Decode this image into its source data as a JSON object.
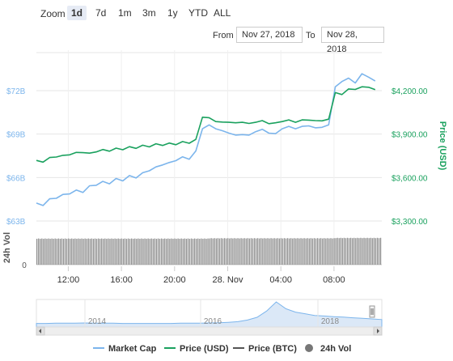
{
  "toolbar": {
    "zoom_label": "Zoom",
    "zoom_options": [
      "1d",
      "7d",
      "1m",
      "3m",
      "1y",
      "YTD",
      "ALL"
    ],
    "active_zoom": "1d",
    "from_label": "From",
    "from_value": "Nov 27, 2018",
    "to_label": "To",
    "to_value": "Nov 28, 2018"
  },
  "colors": {
    "market_cap": "#7cb5ec",
    "price_usd": "#1aa15e",
    "price_btc": "#555555",
    "vol": "#777777",
    "vol_fill": "#8a8a8a"
  },
  "chart_data": {
    "type": "line",
    "x_ticks": [
      "12:00",
      "16:00",
      "20:00",
      "28. Nov",
      "04:00",
      "08:00"
    ],
    "y_left": {
      "ticks": [
        "$63B",
        "$66B",
        "$69B",
        "$72B"
      ],
      "range": [
        63,
        72
      ]
    },
    "y_right": {
      "label": "Price (USD)",
      "ticks": [
        "$3,300.00",
        "$3,600.00",
        "$3,900.00",
        "$4,200.00"
      ],
      "range": [
        3300,
        4200
      ]
    },
    "vol_axis": {
      "label": "24h Vol",
      "ticks": [
        "0"
      ]
    },
    "x_range": [
      0,
      26
    ],
    "series": [
      {
        "name": "Market Cap",
        "unit": "billion USD",
        "x": [
          0,
          0.5,
          1,
          1.5,
          2,
          2.5,
          3,
          3.5,
          4,
          4.5,
          5,
          5.5,
          6,
          6.5,
          7,
          7.5,
          8,
          8.5,
          9,
          9.5,
          10,
          10.5,
          11,
          11.5,
          12,
          12.5,
          13,
          13.5,
          14,
          14.5,
          15,
          15.5,
          16,
          16.5,
          17,
          17.5,
          18,
          18.5,
          19,
          19.5,
          20,
          20.5,
          21,
          21.5,
          22,
          22.5,
          23,
          23.5,
          24,
          24.5,
          25,
          25.5
        ],
        "values": [
          64.2,
          64.1,
          64.5,
          64.6,
          64.8,
          64.9,
          65.1,
          65.0,
          65.4,
          65.5,
          65.7,
          65.6,
          65.9,
          65.8,
          66.1,
          66.0,
          66.3,
          66.5,
          66.7,
          66.9,
          67.0,
          67.2,
          67.4,
          67.3,
          67.8,
          69.4,
          69.6,
          69.4,
          69.2,
          69.1,
          68.9,
          69.0,
          68.9,
          69.2,
          69.3,
          69.1,
          69.0,
          69.4,
          69.5,
          69.4,
          69.5,
          69.6,
          69.4,
          69.5,
          69.6,
          72.3,
          72.6,
          72.9,
          72.5,
          73.2,
          72.9,
          72.7
        ]
      },
      {
        "name": "Price (USD)",
        "unit": "USD",
        "x": [
          0,
          0.5,
          1,
          1.5,
          2,
          2.5,
          3,
          3.5,
          4,
          4.5,
          5,
          5.5,
          6,
          6.5,
          7,
          7.5,
          8,
          8.5,
          9,
          9.5,
          10,
          10.5,
          11,
          11.5,
          12,
          12.5,
          13,
          13.5,
          14,
          14.5,
          15,
          15.5,
          16,
          16.5,
          17,
          17.5,
          18,
          18.5,
          19,
          19.5,
          20,
          20.5,
          21,
          21.5,
          22,
          22.5,
          23,
          23.5,
          24,
          24.5,
          25,
          25.5
        ],
        "values": [
          3715,
          3710,
          3735,
          3745,
          3750,
          3760,
          3770,
          3775,
          3765,
          3780,
          3790,
          3785,
          3800,
          3795,
          3810,
          3805,
          3820,
          3815,
          3830,
          3825,
          3835,
          3830,
          3845,
          3840,
          3860,
          4020,
          4010,
          3990,
          3980,
          3985,
          3975,
          3985,
          3970,
          3985,
          3990,
          3975,
          3975,
          3990,
          3995,
          3985,
          3995,
          4000,
          3990,
          3995,
          4000,
          4190,
          4170,
          4215,
          4205,
          4230,
          4220,
          4210
        ]
      },
      {
        "name": "Price (BTC)",
        "unit": "BTC",
        "x": [],
        "values": []
      }
    ],
    "volume": {
      "name": "24h Vol",
      "note": "nearly flat, high level",
      "levels": [
        0.78,
        0.78,
        0.78,
        0.78,
        0.78,
        0.78,
        0.78,
        0.78,
        0.78,
        0.78,
        0.78,
        0.78,
        0.78,
        0.78,
        0.78,
        0.78,
        0.78,
        0.78,
        0.78,
        0.78,
        0.78,
        0.78,
        0.78,
        0.78,
        0.78,
        0.78,
        0.79,
        0.79,
        0.79,
        0.79,
        0.79,
        0.79,
        0.79,
        0.79,
        0.79,
        0.79,
        0.79,
        0.79,
        0.79,
        0.79,
        0.79,
        0.79,
        0.79,
        0.79,
        0.79,
        0.8,
        0.8,
        0.8,
        0.8,
        0.8,
        0.8,
        0.8
      ]
    },
    "legend": [
      "Market Cap",
      "Price (USD)",
      "Price (BTC)",
      "24h Vol"
    ],
    "legend_position": "bottom",
    "grid": true
  },
  "navigator": {
    "labels": [
      "2014",
      "2016",
      "2018"
    ],
    "levels": [
      0.05,
      0.05,
      0.06,
      0.06,
      0.06,
      0.07,
      0.06,
      0.06,
      0.06,
      0.05,
      0.05,
      0.05,
      0.05,
      0.05,
      0.05,
      0.06,
      0.06,
      0.06,
      0.07,
      0.08,
      0.1,
      0.13,
      0.2,
      0.32,
      0.6,
      1.0,
      0.7,
      0.55,
      0.48,
      0.4,
      0.38,
      0.35,
      0.33,
      0.3,
      0.28,
      0.25,
      0.22
    ]
  }
}
